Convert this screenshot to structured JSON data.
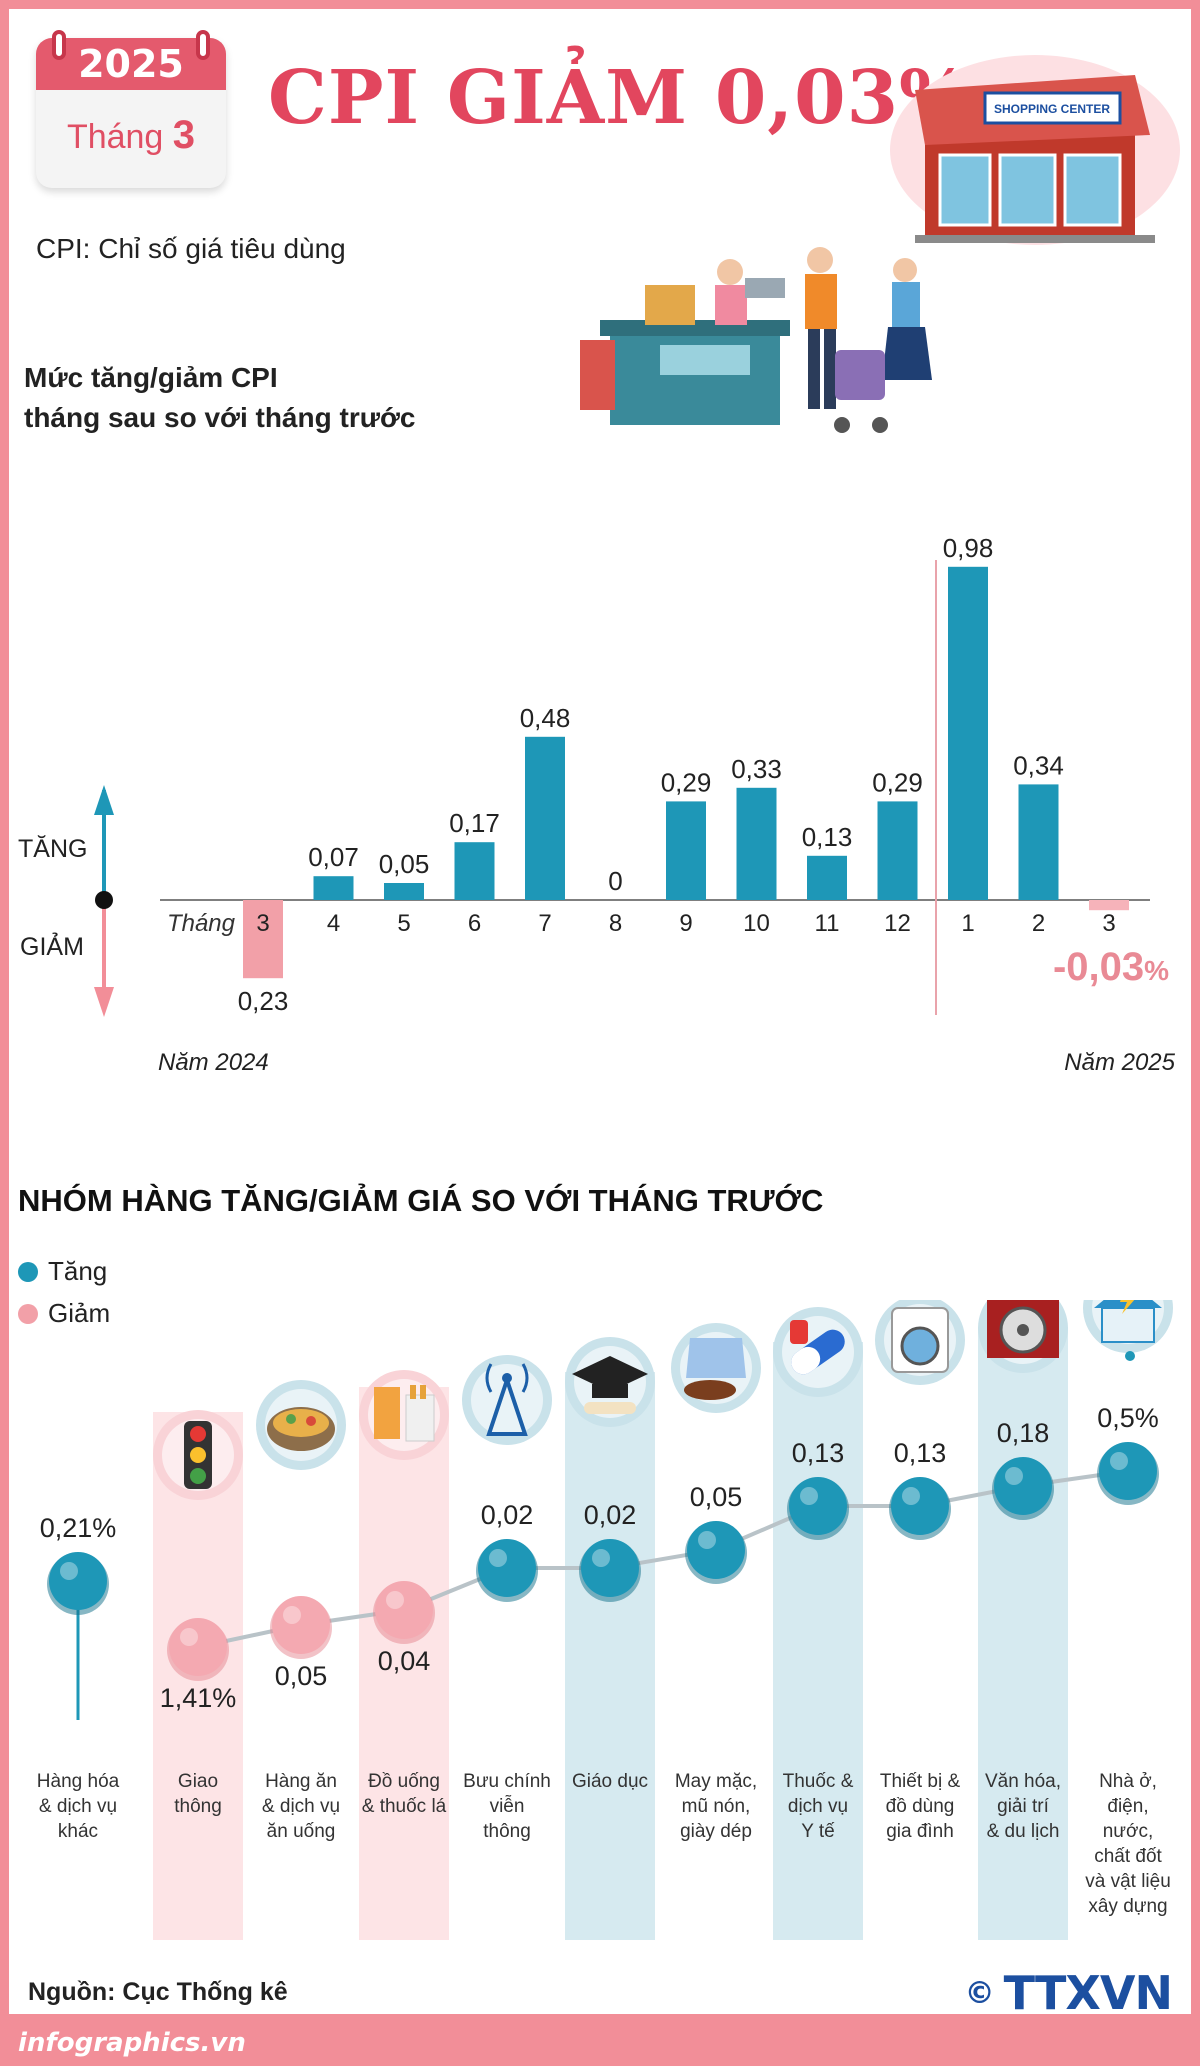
{
  "header": {
    "year": "2025",
    "month_label": "Tháng",
    "month_value": "3",
    "title": "CPI GIẢM 0,03%",
    "subtitle": "CPI: Chỉ số giá tiêu dùng",
    "store_sign": "SHOPPING CENTER"
  },
  "section1": {
    "title_line1": "Mức tăng/giảm CPI",
    "title_line2": "tháng sau so với tháng trước"
  },
  "section2": {
    "title": "NHÓM HÀNG TĂNG/GIẢM GIÁ SO VỚI THÁNG TRƯỚC"
  },
  "legend": {
    "increase": "Tăng",
    "decrease": "Giảm"
  },
  "footer": {
    "source": "Nguồn: Cục Thống kê",
    "logo": "TTXVN",
    "copyright": "©",
    "site": "infographics.vn"
  },
  "colors": {
    "accent": "#e2465e",
    "frame": "#f28e98",
    "increase": "#1e97b7",
    "decrease": "#f2a0a8",
    "increase_band": "#d6eaf0",
    "decrease_band": "#fde4e6"
  },
  "icons": [
    "calendar-icon",
    "shopping-center-icon",
    "cashier-scene-icon",
    "traffic-light-icon",
    "food-bowl-icon",
    "drink-cigarette-icon",
    "antenna-icon",
    "graduation-cap-icon",
    "clothes-shoes-icon",
    "pill-icon",
    "washing-machine-icon",
    "film-reel-icon",
    "house-plug-icon"
  ],
  "chart_data": [
    {
      "type": "bar",
      "axis_labels": {
        "up": "TĂNG",
        "down": "GIẢM",
        "month_prefix": "Tháng",
        "year_left": "Năm 2024",
        "year_right": "Năm 2025"
      },
      "categories": [
        "3",
        "4",
        "5",
        "6",
        "7",
        "8",
        "9",
        "10",
        "11",
        "12",
        "1",
        "2",
        "3"
      ],
      "values": [
        -0.23,
        0.07,
        0.05,
        0.17,
        0.48,
        0,
        0.29,
        0.33,
        0.13,
        0.29,
        0.98,
        0.34,
        -0.03
      ],
      "labels": [
        "0,23",
        "0,07",
        "0,05",
        "0,17",
        "0,48",
        "0",
        "0,29",
        "0,33",
        "0,13",
        "0,29",
        "0,98",
        "0,34",
        "-0,03"
      ],
      "label_suffix": [
        "",
        "",
        "",
        "",
        "",
        "",
        "",
        "",
        "",
        "",
        "",
        "",
        "%"
      ],
      "highlight_last": true
    },
    {
      "type": "scatter",
      "categories": [
        "Hàng hóa & dịch vụ khác",
        "Giao thông",
        "Hàng ăn & dịch vụ ăn uống",
        "Đồ uống & thuốc lá",
        "Bưu chính viễn thông",
        "Giáo dục",
        "May mặc, mũ nón, giày dép",
        "Thuốc & dịch vụ Y tế",
        "Thiết bị & đồ dùng gia đình",
        "Văn hóa, giải trí & du lịch",
        "Nhà ở, điện, nước, chất đốt và vật liệu xây dựng"
      ],
      "category_lines": [
        [
          "Hàng hóa",
          "& dịch vụ",
          "khác"
        ],
        [
          "Giao",
          "thông"
        ],
        [
          "Hàng ăn",
          "& dịch vụ",
          "ăn uống"
        ],
        [
          "Đồ uống",
          "& thuốc lá"
        ],
        [
          "Bưu chính",
          "viễn",
          "thông"
        ],
        [
          "Giáo dục"
        ],
        [
          "May mặc,",
          "mũ nón,",
          "giày dép"
        ],
        [
          "Thuốc &",
          "dịch vụ",
          "Y tế"
        ],
        [
          "Thiết bị &",
          "đồ dùng",
          "gia đình"
        ],
        [
          "Văn hóa,",
          "giải trí",
          "& du lịch"
        ],
        [
          "Nhà ở,",
          "điện,",
          "nước,",
          "chất đốt",
          "và vật liệu",
          "xây dựng"
        ]
      ],
      "values": [
        0.21,
        -1.41,
        -0.05,
        -0.04,
        0.02,
        0.02,
        0.05,
        0.13,
        0.13,
        0.18,
        0.5
      ],
      "labels": [
        "0,21%",
        "1,41%",
        "0,05",
        "0,04",
        "0,02",
        "0,02",
        "0,05",
        "0,13",
        "0,13",
        "0,18",
        "0,5%"
      ],
      "direction": [
        "up",
        "down",
        "down",
        "down",
        "up",
        "up",
        "up",
        "up",
        "up",
        "up",
        "up"
      ]
    }
  ]
}
